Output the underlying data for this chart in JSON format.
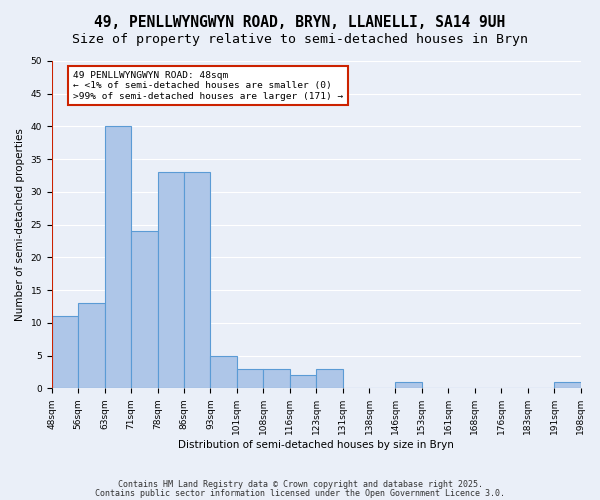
{
  "title_line1": "49, PENLLWYNGWYN ROAD, BRYN, LLANELLI, SA14 9UH",
  "title_line2": "Size of property relative to semi-detached houses in Bryn",
  "xlabel": "Distribution of semi-detached houses by size in Bryn",
  "ylabel": "Number of semi-detached properties",
  "bin_labels": [
    "48sqm",
    "56sqm",
    "63sqm",
    "71sqm",
    "78sqm",
    "86sqm",
    "93sqm",
    "101sqm",
    "108sqm",
    "116sqm",
    "123sqm",
    "131sqm",
    "138sqm",
    "146sqm",
    "153sqm",
    "161sqm",
    "168sqm",
    "176sqm",
    "183sqm",
    "191sqm",
    "198sqm"
  ],
  "heights": [
    11,
    13,
    40,
    24,
    33,
    33,
    5,
    3,
    3,
    2,
    3,
    0,
    0,
    1,
    0,
    0,
    0,
    0,
    0,
    1
  ],
  "bar_color": "#aec6e8",
  "bar_edge_color": "#5b9bd5",
  "annotation_text": "49 PENLLWYNGWYN ROAD: 48sqm\n← <1% of semi-detached houses are smaller (0)\n>99% of semi-detached houses are larger (171) →",
  "annotation_box_color": "#ffffff",
  "annotation_box_edge_color": "#cc2200",
  "ylim": [
    0,
    50
  ],
  "yticks": [
    0,
    5,
    10,
    15,
    20,
    25,
    30,
    35,
    40,
    45,
    50
  ],
  "background_color": "#eaeff8",
  "grid_color": "#ffffff",
  "footer_line1": "Contains HM Land Registry data © Crown copyright and database right 2025.",
  "footer_line2": "Contains public sector information licensed under the Open Government Licence 3.0.",
  "title_fontsize": 10.5,
  "subtitle_fontsize": 9.5,
  "axis_label_fontsize": 7.5,
  "tick_fontsize": 6.5,
  "footer_fontsize": 6.0
}
